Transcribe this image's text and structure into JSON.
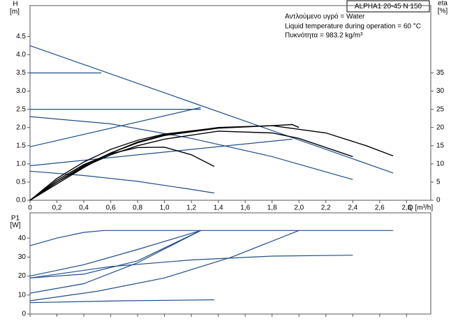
{
  "chart_data": [
    {
      "type": "line",
      "y_label": "H",
      "y_unit": "[m]",
      "y2_label": "eta",
      "y2_unit": "[%]",
      "x_label": "Q [m³/h]",
      "title": "ALPHA1 20-45 N 150",
      "annotations": [
        "Αντλούμενο υγρό = Water",
        "Liquid temperature during operation = 60 °C",
        "Πυκνότητα = 983.2 kg/m³"
      ],
      "xlim": [
        0,
        2.98
      ],
      "ylim": [
        0,
        5.35
      ],
      "y2lim": [
        0,
        53.5
      ],
      "xticks": [
        0,
        {
          "value": 0.2,
          "label": "0,2"
        },
        {
          "value": 0.4,
          "label": "0,4"
        },
        {
          "value": 0.6,
          "label": "0,6"
        },
        {
          "value": 0.8,
          "label": "0,8"
        },
        {
          "value": 1.0,
          "label": "1,0"
        },
        {
          "value": 1.2,
          "label": "1,2"
        },
        {
          "value": 1.4,
          "label": "1,4"
        },
        {
          "value": 1.6,
          "label": "1,6"
        },
        {
          "value": 1.8,
          "label": "1,8"
        },
        {
          "value": 2.0,
          "label": "2,0"
        },
        {
          "value": 2.2,
          "label": "2,2"
        },
        {
          "value": 2.4,
          "label": "2,4"
        },
        {
          "value": 2.6,
          "label": "2,6"
        },
        {
          "value": 2.8,
          "label": "2,8"
        }
      ],
      "yticks": [
        {
          "value": 0,
          "label": "0.0"
        },
        0.5,
        {
          "value": 1,
          "label": "1.0"
        },
        1.5,
        {
          "value": 2,
          "label": "2.0"
        },
        2.5,
        {
          "value": 3,
          "label": "3.0"
        },
        3.5,
        {
          "value": 4,
          "label": "4.0"
        },
        4.5
      ],
      "y2ticks": [
        0,
        5,
        10,
        15,
        20,
        25,
        30,
        35
      ],
      "series": [
        {
          "color": "#1f4e8c",
          "x": [
            0,
            2.7
          ],
          "values": [
            4.25,
            0.75
          ]
        },
        {
          "color": "#1f4e8c",
          "x": [
            0,
            0.53
          ],
          "values": [
            3.5,
            3.5
          ]
        },
        {
          "color": "#1f4e8c",
          "x": [
            0,
            1.27
          ],
          "values": [
            2.5,
            2.5
          ]
        },
        {
          "color": "#1f4e8c",
          "x": [
            0,
            1.27
          ],
          "values": [
            1.47,
            2.55
          ]
        },
        {
          "color": "#1f4e8c",
          "x": [
            0,
            1.95
          ],
          "values": [
            0.95,
            1.68
          ]
        },
        {
          "color": "#1f4e8c",
          "x": [
            0,
            0.6,
            1.2,
            1.8,
            2.4
          ],
          "values": [
            2.3,
            2.1,
            1.7,
            1.2,
            0.57
          ]
        },
        {
          "color": "#1f4e8c",
          "x": [
            0,
            0.4,
            0.8,
            1.2,
            1.37
          ],
          "values": [
            0.8,
            0.68,
            0.52,
            0.3,
            0.2
          ]
        },
        {
          "color": "#000000",
          "x": [
            0,
            0.2,
            0.4,
            0.6,
            0.8,
            1.0,
            1.2,
            1.37
          ],
          "values": [
            0,
            0.55,
            0.98,
            1.28,
            1.45,
            1.46,
            1.25,
            0.93
          ]
        },
        {
          "color": "#000000",
          "x": [
            0,
            0.2,
            0.4,
            0.6,
            0.8,
            1.0,
            1.4,
            1.8,
            2.0,
            2.4
          ],
          "values": [
            0,
            0.5,
            0.92,
            1.25,
            1.5,
            1.68,
            1.9,
            1.85,
            1.7,
            1.2
          ]
        },
        {
          "color": "#000000",
          "x": [
            0,
            0.2,
            0.4,
            0.6,
            0.8,
            1.0,
            1.4,
            1.8,
            1.95,
            2.0
          ],
          "values": [
            0,
            0.5,
            0.95,
            1.3,
            1.58,
            1.78,
            1.98,
            2.05,
            2.08,
            2.0
          ]
        },
        {
          "color": "#000000",
          "x": [
            0,
            0.2,
            0.4,
            0.6,
            0.8,
            1.0,
            1.4,
            1.8,
            2.2,
            2.5,
            2.7
          ],
          "values": [
            0,
            0.45,
            0.9,
            1.3,
            1.6,
            1.8,
            2.0,
            2.05,
            1.85,
            1.5,
            1.22
          ]
        },
        {
          "color": "#000000",
          "x": [
            0,
            0.2,
            0.4,
            0.6,
            0.8,
            1.0,
            1.3
          ],
          "values": [
            0,
            0.6,
            1.05,
            1.4,
            1.65,
            1.82,
            1.95
          ]
        }
      ]
    },
    {
      "type": "line",
      "y_label": "P1",
      "y_unit": "[W]",
      "xlim": [
        0,
        2.98
      ],
      "ylim": [
        0,
        53.3
      ],
      "xticks": [
        0,
        0.2,
        0.4,
        0.6,
        0.8,
        1.0,
        1.2,
        1.4,
        1.6,
        1.8,
        2.0,
        2.2,
        2.4,
        2.6,
        2.8
      ],
      "yticks": [
        0,
        10,
        20,
        30,
        40
      ],
      "series": [
        {
          "color": "#1f4e8c",
          "x": [
            0.55,
            2.7
          ],
          "values": [
            44,
            44
          ]
        },
        {
          "color": "#1f4e8c",
          "x": [
            0,
            0.2,
            0.4,
            0.55
          ],
          "values": [
            36,
            40,
            43,
            44
          ]
        },
        {
          "color": "#1f4e8c",
          "x": [
            0,
            0.4,
            0.8,
            1.27
          ],
          "values": [
            20,
            26,
            34,
            44
          ]
        },
        {
          "color": "#1f4e8c",
          "x": [
            0,
            0.4,
            0.8,
            1.27
          ],
          "values": [
            19,
            21,
            28,
            44
          ]
        },
        {
          "color": "#1f4e8c",
          "x": [
            0,
            0.4,
            0.8,
            1.27
          ],
          "values": [
            11,
            16,
            27,
            44
          ]
        },
        {
          "color": "#1f4e8c",
          "x": [
            0,
            0.5,
            1.0,
            1.5,
            2.0
          ],
          "values": [
            7,
            12,
            19,
            30,
            44
          ]
        },
        {
          "color": "#1f4e8c",
          "x": [
            0,
            0.6,
            1.2,
            1.8,
            2.4
          ],
          "values": [
            19,
            25,
            28.5,
            30.5,
            31
          ]
        },
        {
          "color": "#1f4e8c",
          "x": [
            0,
            0.7,
            1.37
          ],
          "values": [
            6,
            7,
            7.5
          ]
        }
      ]
    }
  ]
}
